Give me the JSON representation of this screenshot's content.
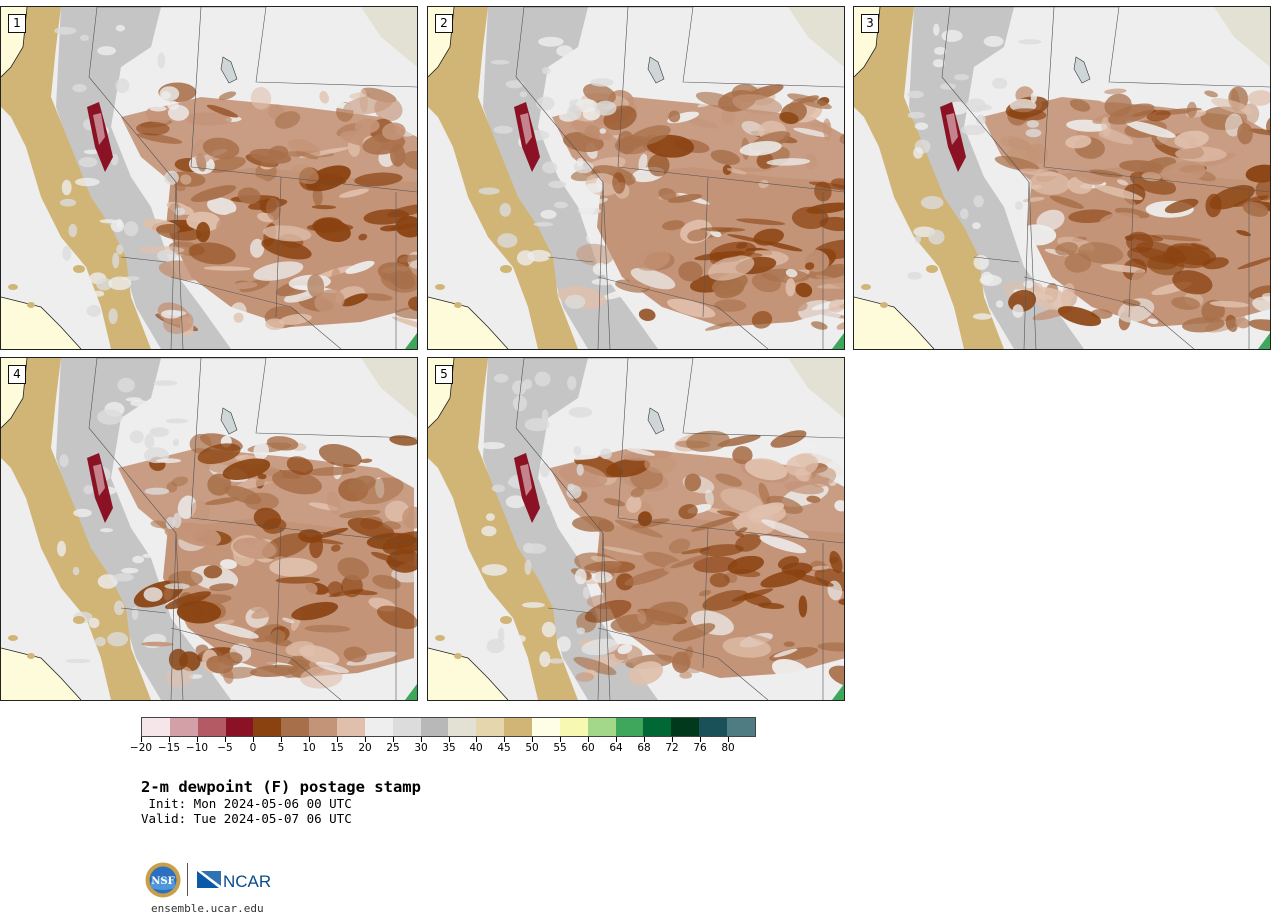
{
  "map": {
    "title": "2-m dewpoint (F) postage stamp",
    "init": " Init: Mon 2024-05-06 00 UTC",
    "valid": "Valid: Tue 2024-05-07 06 UTC",
    "members": [
      "1",
      "2",
      "3",
      "4",
      "5"
    ],
    "legend": {
      "colors": [
        "#f7e6e9",
        "#d3a0a8",
        "#b35a65",
        "#8a1224",
        "#8a4210",
        "#a8704a",
        "#c49478",
        "#e0c0ac",
        "#eeeeee",
        "#dcdcdc",
        "#b8b8b8",
        "#e3e1d3",
        "#e6d6ad",
        "#d1b577",
        "#fefee6",
        "#f7f8b2",
        "#a3d88b",
        "#3ea75b",
        "#006834",
        "#00391c",
        "#1a5158",
        "#4f7c83"
      ],
      "ticks": [
        "−20",
        "−15",
        "−10",
        "−5",
        "0",
        "5",
        "10",
        "15",
        "20",
        "25",
        "30",
        "35",
        "40",
        "45",
        "50",
        "55",
        "60",
        "64",
        "68",
        "72",
        "76",
        "80"
      ]
    },
    "logos": {
      "nsf": "NSF",
      "ncar": "NCAR"
    },
    "url": "ensemble.ucar.edu",
    "colors": {
      "ocean": "#fdfbd9",
      "coast_land": "#d1b577",
      "high_terrain": "#bdbdbd",
      "dry_brown": "#8a4210",
      "mid_brown": "#a8704a",
      "light_brown": "#c49478",
      "pale_brown": "#e0c0ac",
      "light_gray": "#eeeeee",
      "very_dry": "#8a1224"
    }
  }
}
